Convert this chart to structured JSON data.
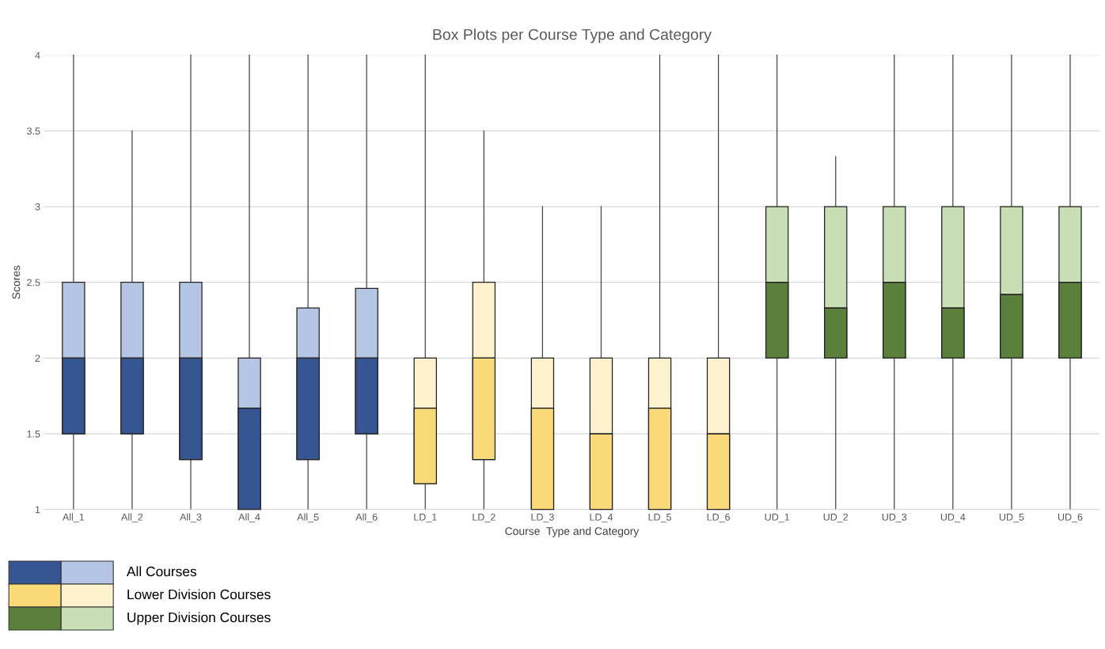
{
  "chart_data": {
    "type": "box",
    "title": "Box Plots per Course Type and Category",
    "xlabel": "Course  Type and Category",
    "ylabel": "Scores",
    "categories": [
      "All_1",
      "All_2",
      "All_3",
      "All_4",
      "All_5",
      "All_6",
      "LD_1",
      "LD_2",
      "LD_3",
      "LD_4",
      "LD_5",
      "LD_6",
      "UD_1",
      "UD_2",
      "UD_3",
      "UD_4",
      "UD_5",
      "UD_6"
    ],
    "ylim": [
      1,
      4
    ],
    "yticks": [
      1,
      1.5,
      2,
      2.5,
      3,
      3.5,
      4
    ],
    "grid": "y",
    "legend": "bottom left",
    "series": [
      {
        "name": "All Courses",
        "color": "#365591",
        "colors": [
          "#b4c6e4",
          "#b4c6e4",
          "#b4c6e4",
          "#b4c6e4",
          "#b4c6e4",
          "#b4c6e4",
          null,
          null,
          null,
          null,
          null,
          null,
          null,
          null,
          null,
          null,
          null,
          null
        ],
        "boxes": [
          {
            "low": 1,
            "q1": 1.5,
            "median": 2,
            "q3": 2.5,
            "high": 4
          },
          {
            "low": 1,
            "q1": 1.5,
            "median": 2,
            "q3": 2.5,
            "high": 3.5
          },
          {
            "low": 1,
            "q1": 1.33,
            "median": 2,
            "q3": 2.5,
            "high": 4
          },
          {
            "low": 1,
            "q1": 1,
            "median": 1.67,
            "q3": 2,
            "high": 4
          },
          {
            "low": 1,
            "q1": 1.33,
            "median": 2,
            "q3": 2.33,
            "high": 4
          },
          {
            "low": 1,
            "q1": 1.5,
            "median": 2,
            "q3": 2.46,
            "high": 4
          },
          null,
          null,
          null,
          null,
          null,
          null,
          null,
          null,
          null,
          null,
          null,
          null
        ]
      },
      {
        "name": "Lower Division Courses",
        "color": "#f9d978",
        "colors": [
          null,
          null,
          null,
          null,
          null,
          null,
          "#fdf2cd",
          "#fdf2cd",
          "#fdf2cd",
          "#fdf2cd",
          "#fdf2cd",
          "#fdf2cd",
          null,
          null,
          null,
          null,
          null,
          null
        ],
        "boxes": [
          null,
          null,
          null,
          null,
          null,
          null,
          {
            "low": 1,
            "q1": 1.17,
            "median": 1.67,
            "q3": 2,
            "high": 4
          },
          {
            "low": 1,
            "q1": 1.33,
            "median": 2,
            "q3": 2.5,
            "high": 3.5
          },
          {
            "low": 1,
            "q1": 1,
            "median": 1.67,
            "q3": 2,
            "high": 3
          },
          {
            "low": 1,
            "q1": 1,
            "median": 1.5,
            "q3": 2,
            "high": 3
          },
          {
            "low": 1,
            "q1": 1,
            "median": 1.67,
            "q3": 2,
            "high": 4
          },
          {
            "low": 1,
            "q1": 1,
            "median": 1.5,
            "q3": 2,
            "high": 4
          },
          null,
          null,
          null,
          null,
          null,
          null
        ]
      },
      {
        "name": "Upper Division Courses",
        "color": "#5b803c",
        "colors": [
          null,
          null,
          null,
          null,
          null,
          null,
          null,
          null,
          null,
          null,
          null,
          null,
          "#c8deb5",
          "#c8deb5",
          "#c8deb5",
          "#c8deb5",
          "#c8deb5",
          "#c8deb5"
        ],
        "boxes": [
          null,
          null,
          null,
          null,
          null,
          null,
          null,
          null,
          null,
          null,
          null,
          null,
          {
            "low": 1,
            "q1": 2,
            "median": 2.5,
            "q3": 3,
            "high": 4
          },
          {
            "low": 1,
            "q1": 2,
            "median": 2.33,
            "q3": 3,
            "high": 3.33
          },
          {
            "low": 1,
            "q1": 2,
            "median": 2.5,
            "q3": 3,
            "high": 4
          },
          {
            "low": 1,
            "q1": 2,
            "median": 2.33,
            "q3": 3,
            "high": 4
          },
          {
            "low": 1,
            "q1": 2,
            "median": 2.42,
            "q3": 3,
            "high": 4
          },
          {
            "low": 1,
            "q1": 2,
            "median": 2.5,
            "q3": 3,
            "high": 4
          }
        ]
      }
    ]
  }
}
